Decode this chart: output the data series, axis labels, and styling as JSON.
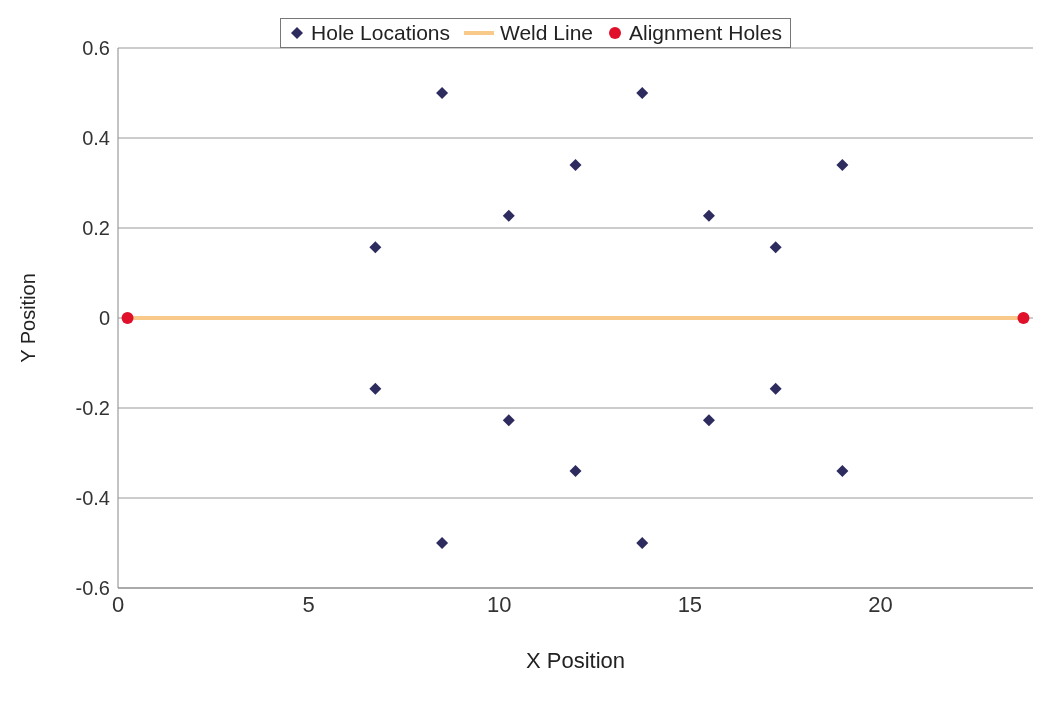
{
  "chart_data": {
    "type": "scatter",
    "xlabel": "X Position",
    "ylabel": "Y Position",
    "xlim": [
      0,
      24
    ],
    "ylim": [
      -0.6,
      0.6
    ],
    "xticks": [
      0,
      5,
      10,
      15,
      20
    ],
    "yticks": [
      -0.6,
      -0.4,
      -0.2,
      0,
      0.2,
      0.4,
      0.6
    ],
    "grid": "y",
    "legend": "top",
    "series": [
      {
        "name": "Hole Locations",
        "marker": "diamond",
        "color": "#2e2b5f",
        "x": [
          6.75,
          8.5,
          10.25,
          12,
          13.75,
          15.5,
          17.25,
          19,
          6.75,
          8.5,
          10.25,
          12,
          13.75,
          15.5,
          17.25,
          19
        ],
        "values": [
          0.157,
          0.5,
          0.227,
          0.34,
          0.5,
          0.227,
          0.157,
          0.34,
          -0.157,
          -0.5,
          -0.227,
          -0.34,
          -0.5,
          -0.227,
          -0.157,
          -0.34
        ]
      },
      {
        "name": "Weld Line",
        "type": "line",
        "marker": "none",
        "line_style": "solid",
        "color": "#f9c98a",
        "x": [
          0.25,
          23.75
        ],
        "values": [
          0,
          0
        ]
      },
      {
        "name": "Alignment Holes",
        "marker": "circle",
        "color": "#e0102a",
        "x": [
          0.25,
          23.75
        ],
        "values": [
          0,
          0
        ]
      }
    ]
  }
}
